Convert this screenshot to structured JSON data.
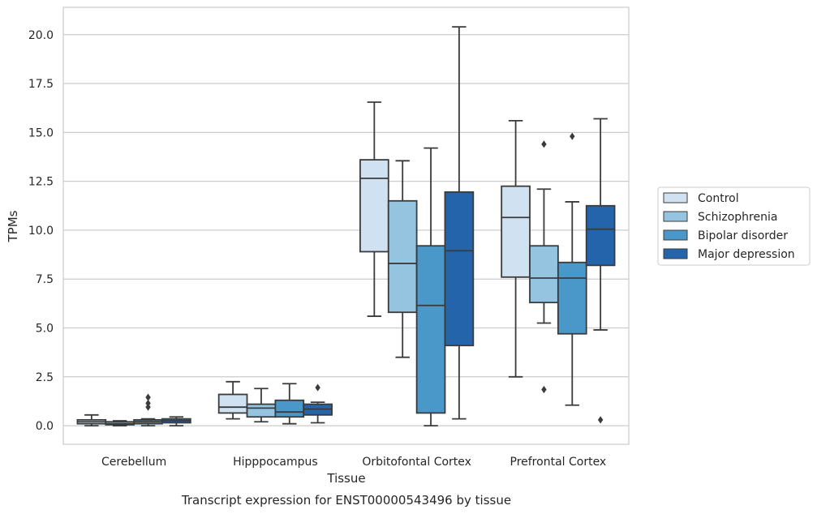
{
  "caption": "Transcript expression for ENST00000543496 by tissue",
  "chart_data": {
    "type": "box",
    "xlabel": "Tissue",
    "ylabel": "TPMs",
    "ylim": [
      -0.95,
      21.4
    ],
    "yticks": [
      0.0,
      2.5,
      5.0,
      7.5,
      10.0,
      12.5,
      15.0,
      17.5,
      20.0
    ],
    "ytick_labels": [
      "0.0",
      "2.5",
      "5.0",
      "7.5",
      "10.0",
      "12.5",
      "15.0",
      "17.5",
      "20.0"
    ],
    "grid": "horizontal",
    "legend_placement": "right-outside",
    "categories": [
      "Cerebellum",
      "Hipppocampus",
      "Orbitofontal Cortex",
      "Prefrontal Cortex"
    ],
    "series": [
      {
        "name": "Control",
        "color": "#d0e1f2",
        "boxes": [
          {
            "whisker_low": 0.0,
            "q1": 0.1,
            "median": 0.2,
            "q3": 0.3,
            "whisker_high": 0.55,
            "outliers": []
          },
          {
            "whisker_low": 0.35,
            "q1": 0.65,
            "median": 0.95,
            "q3": 1.6,
            "whisker_high": 2.25,
            "outliers": []
          },
          {
            "whisker_low": 5.6,
            "q1": 8.9,
            "median": 12.65,
            "q3": 13.6,
            "whisker_high": 16.55,
            "outliers": []
          },
          {
            "whisker_low": 2.5,
            "q1": 7.6,
            "median": 10.65,
            "q3": 12.25,
            "whisker_high": 15.6,
            "outliers": []
          }
        ]
      },
      {
        "name": "Schizophrenia",
        "color": "#94c4df",
        "boxes": [
          {
            "whisker_low": 0.0,
            "q1": 0.05,
            "median": 0.1,
            "q3": 0.2,
            "whisker_high": 0.25,
            "outliers": []
          },
          {
            "whisker_low": 0.2,
            "q1": 0.45,
            "median": 0.9,
            "q3": 1.1,
            "whisker_high": 1.9,
            "outliers": []
          },
          {
            "whisker_low": 3.5,
            "q1": 5.8,
            "median": 8.3,
            "q3": 11.5,
            "whisker_high": 13.55,
            "outliers": []
          },
          {
            "whisker_low": 5.25,
            "q1": 6.3,
            "median": 7.55,
            "q3": 9.2,
            "whisker_high": 12.1,
            "outliers": [
              1.85,
              14.4
            ]
          }
        ]
      },
      {
        "name": "Bipolar disorder",
        "color": "#4a98c9",
        "boxes": [
          {
            "whisker_low": 0.0,
            "q1": 0.1,
            "median": 0.2,
            "q3": 0.3,
            "whisker_high": 0.35,
            "outliers": [
              0.95,
              1.15,
              1.45
            ]
          },
          {
            "whisker_low": 0.1,
            "q1": 0.45,
            "median": 0.7,
            "q3": 1.3,
            "whisker_high": 2.15,
            "outliers": []
          },
          {
            "whisker_low": 0.0,
            "q1": 0.65,
            "median": 6.15,
            "q3": 9.2,
            "whisker_high": 14.2,
            "outliers": []
          },
          {
            "whisker_low": 1.05,
            "q1": 4.7,
            "median": 7.55,
            "q3": 8.35,
            "whisker_high": 11.45,
            "outliers": [
              14.8
            ]
          }
        ]
      },
      {
        "name": "Major depression",
        "color": "#2464ab",
        "boxes": [
          {
            "whisker_low": 0.0,
            "q1": 0.15,
            "median": 0.25,
            "q3": 0.35,
            "whisker_high": 0.45,
            "outliers": []
          },
          {
            "whisker_low": 0.15,
            "q1": 0.55,
            "median": 0.85,
            "q3": 1.1,
            "whisker_high": 1.2,
            "outliers": [
              1.95
            ]
          },
          {
            "whisker_low": 0.35,
            "q1": 4.1,
            "median": 8.95,
            "q3": 11.95,
            "whisker_high": 20.4,
            "outliers": []
          },
          {
            "whisker_low": 4.9,
            "q1": 8.2,
            "median": 10.05,
            "q3": 11.25,
            "whisker_high": 15.7,
            "outliers": [
              0.3
            ]
          }
        ]
      }
    ]
  }
}
